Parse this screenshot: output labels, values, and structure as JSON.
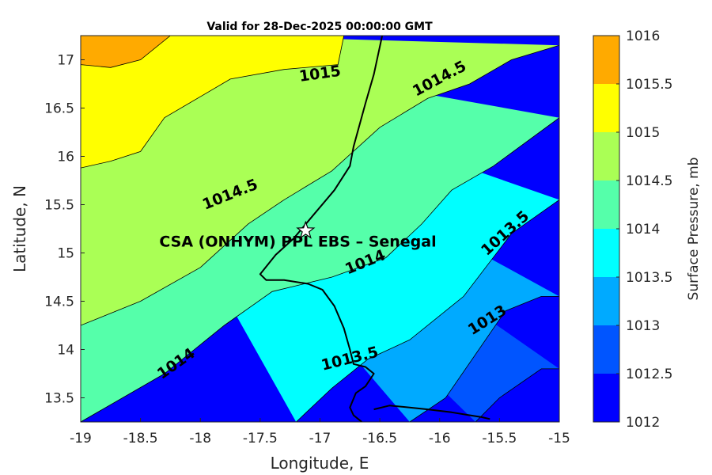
{
  "title": "Valid for 28-Dec-2025 00:00:00 GMT",
  "x_axis": {
    "label": "Longitude, E",
    "range": [
      -19,
      -15
    ],
    "ticks": [
      -19,
      -18.5,
      -18,
      -17.5,
      -17,
      -16.5,
      -16,
      -15.5,
      -15
    ],
    "tick_labels": [
      "-19",
      "-18.5",
      "-18",
      "-17.5",
      "-17",
      "-16.5",
      "-16",
      "-15.5",
      "-15"
    ]
  },
  "y_axis": {
    "label": "Latitude, N",
    "range": [
      13.25,
      17.25
    ],
    "ticks": [
      13.5,
      14,
      14.5,
      15,
      15.5,
      16,
      16.5,
      17
    ],
    "tick_labels": [
      "13.5",
      "14",
      "14.5",
      "15",
      "15.5",
      "16",
      "16.5",
      "17"
    ]
  },
  "colorbar": {
    "label": "Surface Pressure, mb",
    "range": [
      1012,
      1016
    ],
    "ticks": [
      "1012",
      "1012.5",
      "1013",
      "1013.5",
      "1014",
      "1014.5",
      "1015",
      "1015.5",
      "1016"
    ],
    "levels": [
      {
        "from": 1012,
        "to": 1012.5,
        "color": "#0000ff"
      },
      {
        "from": 1012.5,
        "to": 1013,
        "color": "#0055ff"
      },
      {
        "from": 1013,
        "to": 1013.5,
        "color": "#00aaff"
      },
      {
        "from": 1013.5,
        "to": 1014,
        "color": "#00ffff"
      },
      {
        "from": 1014,
        "to": 1014.5,
        "color": "#55ffaa"
      },
      {
        "from": 1014.5,
        "to": 1015,
        "color": "#aaff55"
      },
      {
        "from": 1015,
        "to": 1015.5,
        "color": "#ffff00"
      },
      {
        "from": 1015.5,
        "to": 1016,
        "color": "#ffaa00"
      }
    ]
  },
  "site": {
    "label": "CSA (ONHYM) PPL EBS  – Senegal",
    "lon": -17.12,
    "lat": 15.23,
    "marker": "star"
  },
  "contour_labels": [
    {
      "text": "1015",
      "lon": -17.0,
      "lat": 16.85
    },
    {
      "text": "1014.5",
      "lon": -16.0,
      "lat": 16.8
    },
    {
      "text": "1014.5",
      "lon": -17.75,
      "lat": 15.6
    },
    {
      "text": "1014",
      "lon": -16.62,
      "lat": 14.9
    },
    {
      "text": "1013.5",
      "lon": -15.45,
      "lat": 15.2
    },
    {
      "text": "1014",
      "lon": -18.2,
      "lat": 13.85
    },
    {
      "text": "1013.5",
      "lon": -16.75,
      "lat": 13.9
    },
    {
      "text": "1013",
      "lon": -15.6,
      "lat": 14.3
    }
  ],
  "contours": [
    {
      "level": 1015.5,
      "points": [
        [
          -19,
          16.95
        ],
        [
          -18.75,
          16.92
        ],
        [
          -18.5,
          17.0
        ],
        [
          -18.25,
          17.25
        ]
      ]
    },
    {
      "level": 1015,
      "points": [
        [
          -19,
          15.88
        ],
        [
          -18.75,
          15.95
        ],
        [
          -18.5,
          16.05
        ],
        [
          -18.3,
          16.4
        ],
        [
          -17.75,
          16.8
        ],
        [
          -17.3,
          16.9
        ],
        [
          -16.85,
          16.95
        ],
        [
          -16.8,
          17.25
        ]
      ]
    },
    {
      "level": 1014.5,
      "points": [
        [
          -19,
          14.25
        ],
        [
          -18.5,
          14.5
        ],
        [
          -18.0,
          14.85
        ],
        [
          -17.6,
          15.3
        ],
        [
          -17.3,
          15.55
        ],
        [
          -16.9,
          15.85
        ],
        [
          -16.5,
          16.3
        ],
        [
          -16.1,
          16.6
        ],
        [
          -15.75,
          16.75
        ],
        [
          -15.4,
          17.0
        ],
        [
          -15.0,
          17.15
        ]
      ]
    },
    {
      "level": 1014,
      "points": [
        [
          -19,
          13.25
        ],
        [
          -18.3,
          13.75
        ],
        [
          -17.8,
          14.25
        ],
        [
          -17.4,
          14.6
        ],
        [
          -16.9,
          14.75
        ],
        [
          -16.45,
          14.95
        ],
        [
          -16.15,
          15.3
        ],
        [
          -15.9,
          15.65
        ],
        [
          -15.55,
          15.9
        ],
        [
          -15.0,
          16.4
        ]
      ]
    },
    {
      "level": 1013.5,
      "points": [
        [
          -17.2,
          13.25
        ],
        [
          -16.9,
          13.6
        ],
        [
          -16.6,
          13.9
        ],
        [
          -16.25,
          14.1
        ],
        [
          -15.8,
          14.55
        ],
        [
          -15.4,
          15.2
        ],
        [
          -15.0,
          15.55
        ]
      ]
    },
    {
      "level": 1013,
      "points": [
        [
          -16.25,
          13.25
        ],
        [
          -15.95,
          13.5
        ],
        [
          -15.7,
          13.95
        ],
        [
          -15.45,
          14.4
        ],
        [
          -15.15,
          14.55
        ],
        [
          -15.0,
          14.55
        ]
      ]
    },
    {
      "level": 1012.5,
      "points": [
        [
          -15.7,
          13.25
        ],
        [
          -15.5,
          13.5
        ],
        [
          -15.15,
          13.8
        ],
        [
          -15.0,
          13.8
        ]
      ]
    }
  ],
  "coastlines": [
    [
      [
        -16.48,
        17.25
      ],
      [
        -16.55,
        16.85
      ],
      [
        -16.62,
        16.55
      ],
      [
        -16.72,
        16.1
      ],
      [
        -16.75,
        15.9
      ],
      [
        -16.88,
        15.65
      ],
      [
        -17.05,
        15.4
      ],
      [
        -17.22,
        15.15
      ],
      [
        -17.37,
        14.98
      ],
      [
        -17.5,
        14.78
      ],
      [
        -17.45,
        14.72
      ],
      [
        -17.3,
        14.72
      ],
      [
        -17.1,
        14.68
      ],
      [
        -16.98,
        14.62
      ],
      [
        -16.88,
        14.45
      ],
      [
        -16.8,
        14.22
      ],
      [
        -16.75,
        14.0
      ],
      [
        -16.72,
        13.85
      ],
      [
        -16.62,
        13.82
      ],
      [
        -16.55,
        13.75
      ],
      [
        -16.62,
        13.62
      ],
      [
        -16.7,
        13.55
      ],
      [
        -16.75,
        13.4
      ],
      [
        -16.72,
        13.32
      ],
      [
        -16.65,
        13.25
      ]
    ],
    [
      [
        -16.55,
        13.38
      ],
      [
        -16.42,
        13.42
      ],
      [
        -16.25,
        13.4
      ],
      [
        -16.1,
        13.38
      ],
      [
        -15.9,
        13.35
      ],
      [
        -15.75,
        13.32
      ],
      [
        -15.65,
        13.3
      ],
      [
        -15.58,
        13.28
      ]
    ]
  ]
}
